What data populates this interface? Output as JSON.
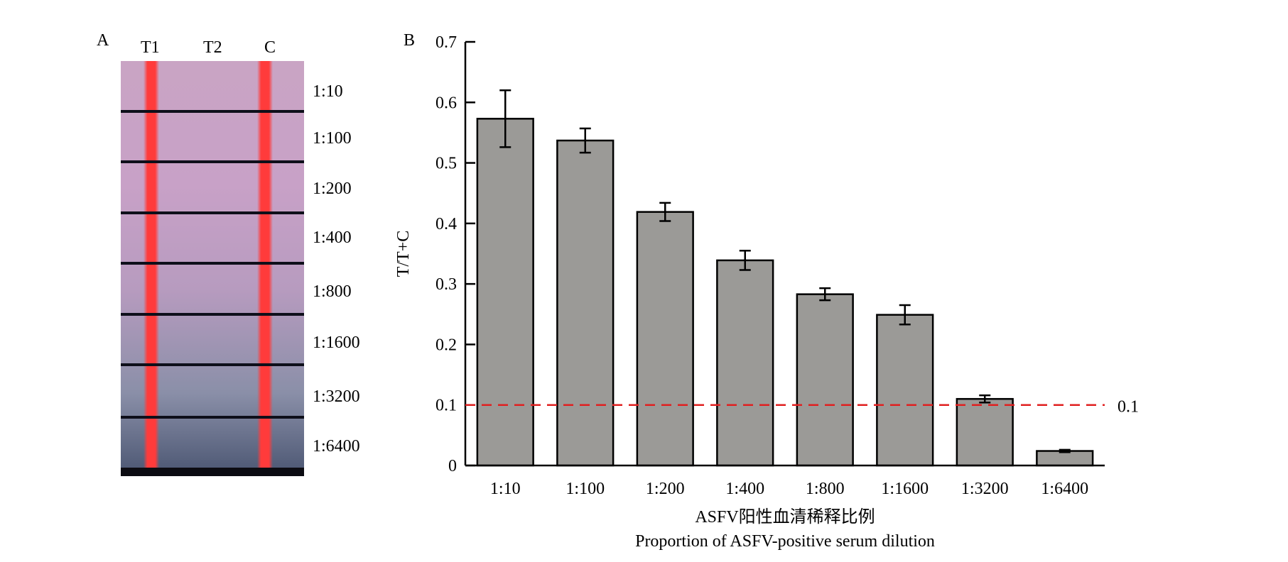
{
  "panels": {
    "a_label": "A",
    "b_label": "B"
  },
  "strip": {
    "lanes": [
      "T1",
      "T2",
      "C"
    ],
    "rows": [
      "1:10",
      "1:100",
      "1:200",
      "1:400",
      "1:800",
      "1:1600",
      "1:3200",
      "1:6400"
    ]
  },
  "chart_data": {
    "type": "bar",
    "categories": [
      "1:10",
      "1:100",
      "1:200",
      "1:400",
      "1:800",
      "1:1600",
      "1:3200",
      "1:6400"
    ],
    "values": [
      0.573,
      0.537,
      0.419,
      0.339,
      0.283,
      0.249,
      0.11,
      0.024
    ],
    "errors": [
      0.047,
      0.02,
      0.015,
      0.016,
      0.01,
      0.016,
      0.006,
      0.002
    ],
    "xlabel_cn": "ASFV阳性血清稀释比例",
    "xlabel_en": "Proportion of ASFV-positive serum dilution",
    "ylabel": "T/T+C",
    "yticks": [
      "0",
      "0.1",
      "0.2",
      "0.3",
      "0.4",
      "0.5",
      "0.6",
      "0.7"
    ],
    "ylim": [
      0,
      0.7
    ],
    "threshold": {
      "value": 0.1,
      "label": "0.1",
      "color": "#e02020"
    },
    "bar_color": "#9b9a97",
    "grid": false,
    "legend": "none"
  }
}
